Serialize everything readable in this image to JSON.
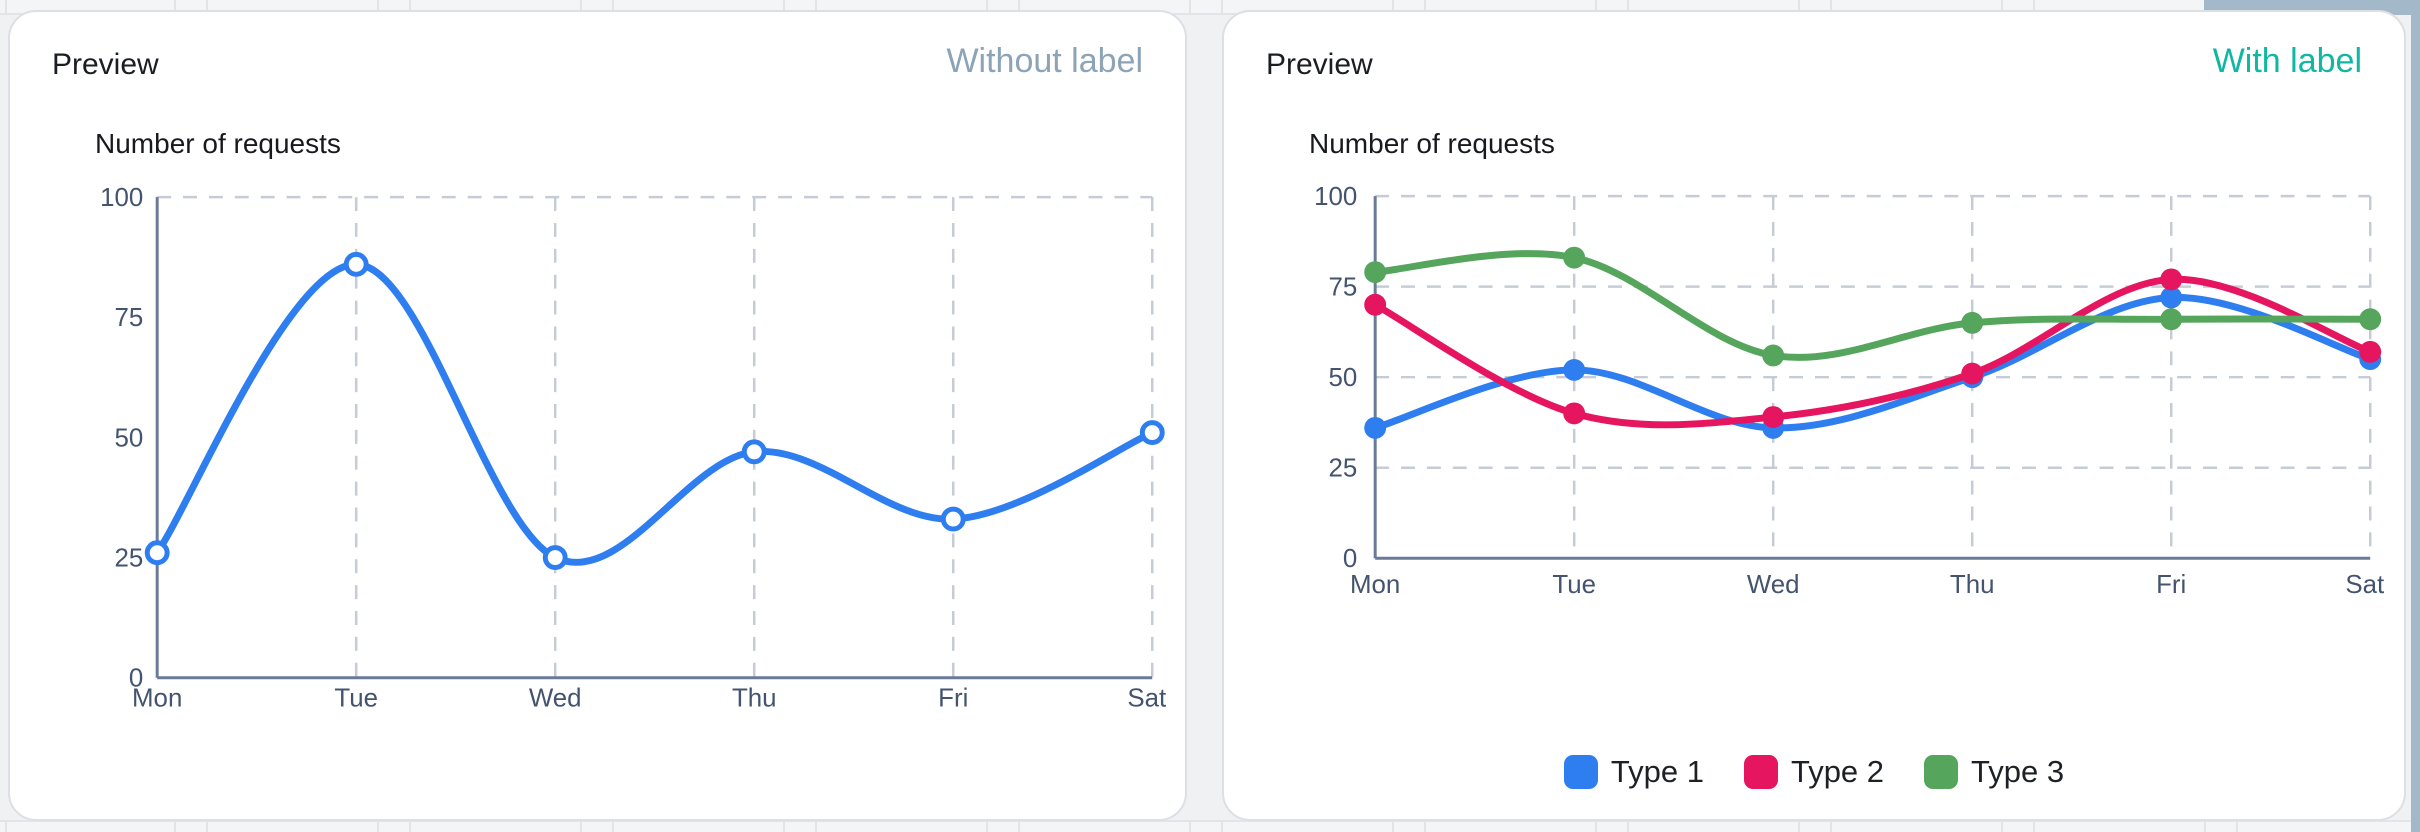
{
  "page": {
    "background": "#eff1f3",
    "accent_strip_color": "#a3b9c9"
  },
  "cards": [
    {
      "header": {
        "title": "Preview",
        "tag": "Without label",
        "tag_color": "#8ca3b8"
      }
    },
    {
      "header": {
        "title": "Preview",
        "tag": "With label",
        "tag_color": "#10b7a3"
      }
    }
  ],
  "chart_data": [
    {
      "type": "line",
      "title": "Number of requests",
      "categories": [
        "Mon",
        "Tue",
        "Wed",
        "Thu",
        "Fri",
        "Sat"
      ],
      "series": [
        {
          "name": "requests",
          "color": "#2e7ef0",
          "values": [
            26,
            86,
            25,
            47,
            33,
            51
          ]
        }
      ],
      "ylim": [
        0,
        100
      ],
      "yticks": [
        0,
        25,
        50,
        75,
        100
      ],
      "grid": {
        "horizontal_dashed_at": [
          100
        ],
        "vertical_dashed_at_categories": [
          "Tue",
          "Wed",
          "Thu",
          "Fri",
          "Sat"
        ]
      },
      "marker": "open",
      "legend": false,
      "axis_color": "#6a7a99",
      "grid_color": "#c6ccd6",
      "tick_label_color": "#44546f"
    },
    {
      "type": "line",
      "title": "Number of requests",
      "categories": [
        "Mon",
        "Tue",
        "Wed",
        "Thu",
        "Fri",
        "Sat"
      ],
      "series": [
        {
          "name": "Type 1",
          "color": "#2e7ef0",
          "values": [
            36,
            52,
            36,
            50,
            72,
            55
          ]
        },
        {
          "name": "Type 2",
          "color": "#e5155f",
          "values": [
            70,
            40,
            39,
            51,
            77,
            57
          ]
        },
        {
          "name": "Type 3",
          "color": "#55a55c",
          "values": [
            79,
            83,
            56,
            65,
            66,
            66
          ]
        }
      ],
      "ylim": [
        0,
        100
      ],
      "yticks": [
        0,
        25,
        50,
        75,
        100
      ],
      "grid": {
        "horizontal_dashed_at": [
          25,
          50,
          75,
          100
        ],
        "vertical_dashed_at_categories": [
          "Tue",
          "Wed",
          "Thu",
          "Fri",
          "Sat"
        ]
      },
      "marker": "filled",
      "legend": true,
      "legend_position": "bottom-center",
      "axis_color": "#6a7a99",
      "grid_color": "#c6ccd6",
      "tick_label_color": "#44546f"
    }
  ]
}
